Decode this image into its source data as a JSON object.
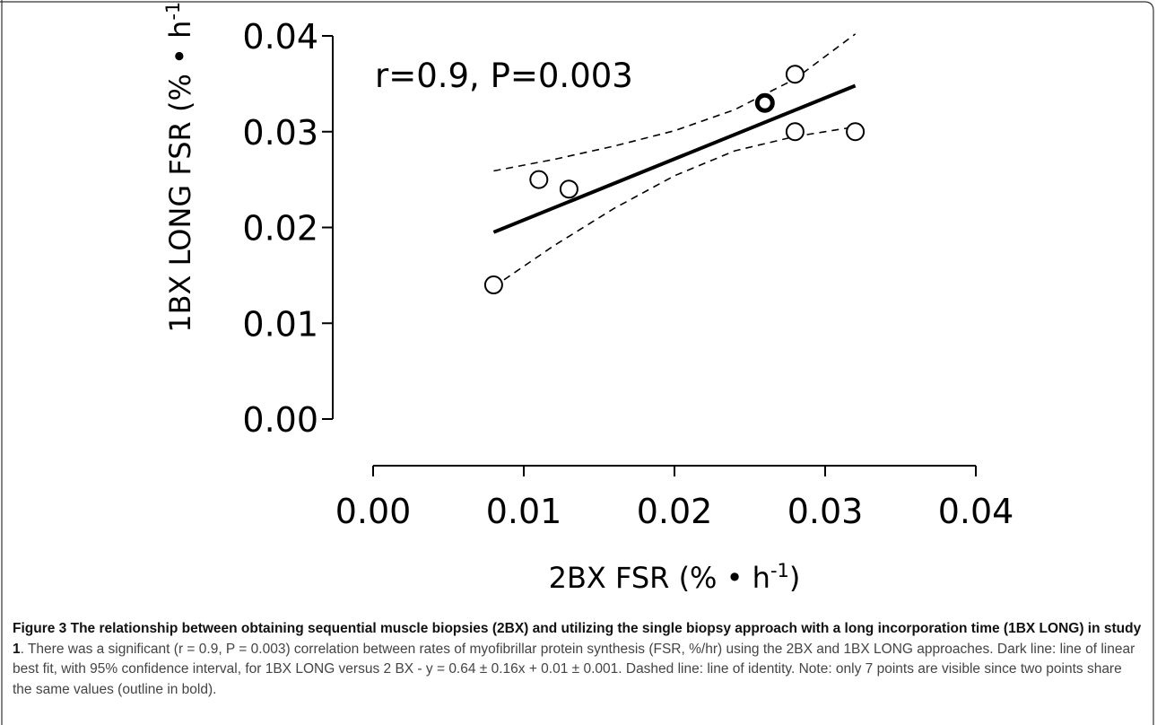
{
  "chart_data": {
    "type": "scatter",
    "annotation": "r=0.9, P=0.003",
    "xlabel": {
      "main": "2BX FSR (% • h",
      "sup": "-1",
      "close": ")"
    },
    "ylabel": {
      "main": "1BX LONG FSR (% • h",
      "sup": "-1",
      "close": ")"
    },
    "xlim": [
      0.0,
      0.04
    ],
    "ylim": [
      0.0,
      0.04
    ],
    "x_ticks": [
      0.0,
      0.01,
      0.02,
      0.03,
      0.04
    ],
    "x_tick_labels": [
      "0.00",
      "0.01",
      "0.02",
      "0.03",
      "0.04"
    ],
    "y_ticks": [
      0.0,
      0.01,
      0.02,
      0.03,
      0.04
    ],
    "y_tick_labels": [
      "0.00",
      "0.01",
      "0.02",
      "0.03",
      "0.04"
    ],
    "grid": false,
    "points": [
      {
        "x": 0.008,
        "y": 0.014,
        "bold": false
      },
      {
        "x": 0.011,
        "y": 0.025,
        "bold": false
      },
      {
        "x": 0.013,
        "y": 0.024,
        "bold": false
      },
      {
        "x": 0.026,
        "y": 0.033,
        "bold": true
      },
      {
        "x": 0.028,
        "y": 0.036,
        "bold": false
      },
      {
        "x": 0.028,
        "y": 0.03,
        "bold": false
      },
      {
        "x": 0.032,
        "y": 0.03,
        "bold": false
      }
    ],
    "fit_line": {
      "x": [
        0.008,
        0.032
      ],
      "y": [
        0.0195,
        0.0348
      ]
    },
    "ci_upper": {
      "x": [
        0.008,
        0.012,
        0.016,
        0.02,
        0.024,
        0.028,
        0.032
      ],
      "y": [
        0.0259,
        0.0271,
        0.0285,
        0.0301,
        0.0323,
        0.0355,
        0.0402
      ]
    },
    "ci_lower": {
      "x": [
        0.008,
        0.012,
        0.016,
        0.02,
        0.024,
        0.028,
        0.032
      ],
      "y": [
        0.0138,
        0.0181,
        0.022,
        0.0254,
        0.028,
        0.0295,
        0.0305
      ]
    }
  },
  "caption": {
    "lead": "Figure 3 The relationship between obtaining sequential muscle biopsies (2BX) and utilizing the single biopsy approach with a long incorporation time (1BX LONG) in study 1",
    "body": ". There was a significant (r = 0.9, P = 0.003) correlation between rates of myofibrillar protein synthesis (FSR, %/hr) using the 2BX and 1BX LONG approaches. Dark line: line of linear best fit, with 95% confidence interval, for 1BX LONG versus 2 BX - y = 0.64 ± 0.16x + 0.01 ± 0.001. Dashed line: line of identity. Note: only 7 points are visible since two points share the same values (outline in bold)."
  },
  "colors": {
    "ink": "#000000",
    "frame": "#333333",
    "caption_text": "#444444"
  }
}
